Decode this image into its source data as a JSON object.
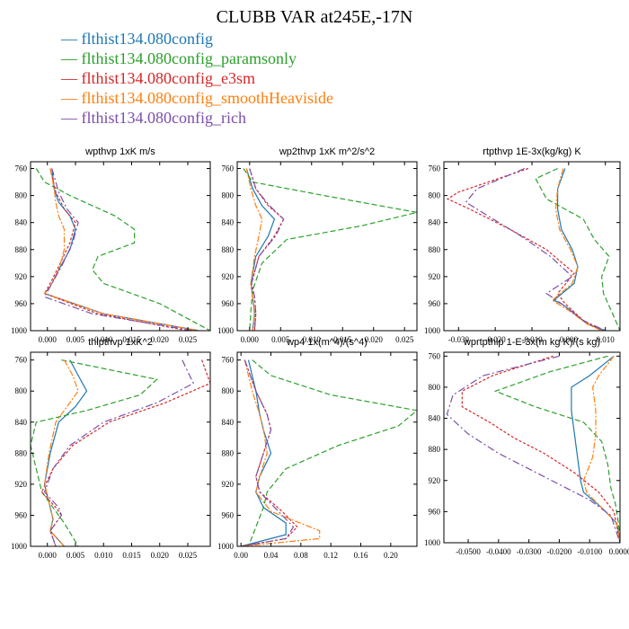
{
  "title": "CLUBB VAR at245E,-17N",
  "legend": [
    {
      "label": "flthist134.080config",
      "color": "#1f77b4"
    },
    {
      "label": "flthist134.080config_paramsonly",
      "color": "#2ca02c"
    },
    {
      "label": "flthist134.080config_e3sm",
      "color": "#d62728"
    },
    {
      "label": "flthist134.080config_smoothHeaviside",
      "color": "#ff7f0e"
    },
    {
      "label": "flthist134.080config_rich",
      "color": "#7b4fa8"
    }
  ],
  "chart_data": [
    {
      "type": "line",
      "title": "wpthvp   1xK m/s",
      "xlim": [
        -0.003,
        0.029
      ],
      "ylim": [
        1000,
        750
      ],
      "xticks": [
        0,
        0.005,
        0.01,
        0.015,
        0.02,
        0.025
      ],
      "xtick_labels": [
        "0.000",
        "0.005",
        "0.010",
        "0.015",
        "0.020",
        "0.025"
      ],
      "yticks": [
        760,
        800,
        840,
        880,
        920,
        960,
        1000
      ],
      "series": [
        {
          "name": "flthist134.080config",
          "x": [
            0.0008,
            0.0012,
            0.002,
            0.004,
            0.005,
            0.004,
            0.002,
            0.0005,
            -0.0005,
            0.01,
            0.027
          ],
          "y": [
            760,
            790,
            810,
            830,
            850,
            880,
            910,
            935,
            945,
            975,
            1000
          ]
        },
        {
          "name": "flthist134.080config_paramsonly",
          "x": [
            -0.002,
            -0.0005,
            0.004,
            0.012,
            0.0155,
            0.0155,
            0.009,
            0.008,
            0.01,
            0.02,
            0.029
          ],
          "y": [
            760,
            780,
            800,
            830,
            850,
            870,
            890,
            910,
            930,
            960,
            1000
          ]
        },
        {
          "name": "flthist134.080config_e3sm",
          "x": [
            0.0005,
            0.0015,
            0.003,
            0.005,
            0.004,
            0.002,
            0.0005,
            -0.0005,
            0.009,
            0.025
          ],
          "y": [
            760,
            795,
            820,
            840,
            870,
            905,
            930,
            945,
            975,
            1000
          ]
        },
        {
          "name": "flthist134.080config_smoothHeaviside",
          "x": [
            0.0005,
            0.0012,
            0.0015,
            0.002,
            0.003,
            0.003,
            0.002,
            0.0005,
            -0.0005,
            0.01,
            0.027
          ],
          "y": [
            760,
            790,
            810,
            830,
            850,
            880,
            910,
            935,
            945,
            975,
            1000
          ]
        },
        {
          "name": "flthist134.080config_rich",
          "x": [
            0.0008,
            0.002,
            0.0035,
            0.0055,
            0.0045,
            0.0025,
            0.0008,
            -0.0005,
            0.008,
            0.026
          ],
          "y": [
            760,
            795,
            820,
            840,
            870,
            905,
            930,
            950,
            975,
            1000
          ]
        }
      ]
    },
    {
      "type": "line",
      "title": "wp2thvp   1xK m^2/s^2",
      "xlim": [
        -0.002,
        0.027
      ],
      "ylim": [
        1000,
        750
      ],
      "xticks": [
        0,
        0.005,
        0.01,
        0.015,
        0.02,
        0.025
      ],
      "xtick_labels": [
        "0.000",
        "0.005",
        "0.010",
        "0.015",
        "0.020",
        "0.025"
      ],
      "yticks": [
        760,
        800,
        840,
        880,
        920,
        960,
        1000
      ],
      "series": [
        {
          "name": "flthist134.080config",
          "x": [
            -0.0005,
            0.0005,
            0.002,
            0.004,
            0.003,
            0.001,
            0.0002,
            0.0005,
            0.0008,
            0.0005
          ],
          "y": [
            760,
            790,
            815,
            835,
            860,
            890,
            930,
            950,
            975,
            1000
          ]
        },
        {
          "name": "flthist134.080config_paramsonly",
          "x": [
            -0.001,
            0.0005,
            0.012,
            0.027,
            0.018,
            0.006,
            0.002,
            0.0005,
            0.0002,
            0.0
          ],
          "y": [
            760,
            780,
            800,
            825,
            845,
            865,
            900,
            940,
            970,
            1000
          ]
        },
        {
          "name": "flthist134.080config_e3sm",
          "x": [
            0.0,
            0.001,
            0.003,
            0.0055,
            0.004,
            0.0015,
            0.0003,
            0.0008,
            0.001,
            0.0008
          ],
          "y": [
            760,
            790,
            815,
            835,
            860,
            890,
            930,
            950,
            975,
            1000
          ]
        },
        {
          "name": "flthist134.080config_smoothHeaviside",
          "x": [
            -0.0005,
            0.0002,
            0.001,
            0.002,
            0.0015,
            0.0008,
            0.0002,
            0.0005,
            0.0008,
            0.0005
          ],
          "y": [
            760,
            790,
            815,
            835,
            860,
            890,
            930,
            950,
            975,
            1000
          ]
        },
        {
          "name": "flthist134.080config_rich",
          "x": [
            0.0,
            0.001,
            0.0032,
            0.0055,
            0.0042,
            0.0015,
            0.0003,
            0.0008,
            0.001,
            0.0008
          ],
          "y": [
            760,
            790,
            815,
            835,
            860,
            890,
            930,
            950,
            975,
            1000
          ]
        }
      ]
    },
    {
      "type": "line",
      "title": "rtpthvp   1E-3x(kg/kg) K",
      "xlim": [
        -0.034,
        0.014
      ],
      "ylim": [
        1000,
        750
      ],
      "xticks": [
        -0.03,
        -0.02,
        -0.01,
        0,
        0.01
      ],
      "xtick_labels": [
        "-0.030",
        "-0.020",
        "-0.010",
        "0.000",
        "0.010"
      ],
      "yticks": [
        760,
        800,
        840,
        880,
        920,
        960,
        1000
      ],
      "series": [
        {
          "name": "flthist134.080config",
          "x": [
            -0.001,
            -0.003,
            -0.003,
            -0.002,
            0.001,
            0.0025,
            0.0015,
            -0.004,
            -0.002,
            0.0005,
            0.005,
            0.01
          ],
          "y": [
            760,
            790,
            820,
            850,
            880,
            905,
            930,
            955,
            960,
            970,
            990,
            1000
          ]
        },
        {
          "name": "flthist134.080config_paramsonly",
          "x": [
            -0.003,
            -0.009,
            -0.006,
            0.004,
            0.007,
            0.011,
            0.009,
            0.0095,
            0.012,
            0.014
          ],
          "y": [
            760,
            775,
            805,
            835,
            865,
            890,
            920,
            945,
            975,
            1000
          ]
        },
        {
          "name": "flthist134.080config_e3sm",
          "x": [
            -0.011,
            -0.03,
            -0.033,
            -0.027,
            -0.016,
            -0.006,
            0.0015,
            -0.003,
            -0.001,
            0.004,
            0.009
          ],
          "y": [
            760,
            795,
            805,
            820,
            850,
            880,
            915,
            945,
            960,
            985,
            1000
          ]
        },
        {
          "name": "flthist134.080config_smoothHeaviside",
          "x": [
            -0.0015,
            -0.003,
            -0.0035,
            -0.0025,
            0.0005,
            0.0025,
            0.001,
            -0.0045,
            -0.003,
            0.0,
            0.005,
            0.009
          ],
          "y": [
            760,
            790,
            820,
            850,
            880,
            905,
            930,
            955,
            960,
            970,
            990,
            1000
          ]
        },
        {
          "name": "flthist134.080config_rich",
          "x": [
            -0.012,
            -0.025,
            -0.028,
            -0.022,
            -0.013,
            -0.005,
            0.001,
            -0.006,
            -0.002,
            0.004,
            0.01
          ],
          "y": [
            760,
            790,
            810,
            830,
            860,
            890,
            920,
            945,
            960,
            985,
            1000
          ]
        }
      ]
    },
    {
      "type": "line",
      "title": "thlpthvp   1xK^2",
      "xlim": [
        -0.003,
        0.029
      ],
      "ylim": [
        1000,
        750
      ],
      "xticks": [
        0,
        0.005,
        0.01,
        0.015,
        0.02,
        0.025
      ],
      "xtick_labels": [
        "0.000",
        "0.005",
        "0.010",
        "0.015",
        "0.020",
        "0.025"
      ],
      "yticks": [
        760,
        800,
        840,
        880,
        920,
        960,
        1000
      ],
      "series": [
        {
          "name": "flthist134.080config",
          "x": [
            0.004,
            0.0055,
            0.007,
            0.005,
            0.002,
            0.0005,
            -0.0005,
            0.0005,
            0.001,
            0.0005,
            0.003
          ],
          "y": [
            760,
            780,
            800,
            820,
            840,
            880,
            920,
            950,
            965,
            980,
            1000
          ]
        },
        {
          "name": "flthist134.080config_paramsonly",
          "x": [
            0.0025,
            0.0195,
            0.0165,
            0.007,
            -0.002,
            -0.003,
            -0.002,
            -0.001,
            0.001,
            0.003,
            0.0055
          ],
          "y": [
            760,
            785,
            805,
            825,
            840,
            870,
            900,
            930,
            950,
            970,
            1000
          ]
        },
        {
          "name": "flthist134.080config_e3sm",
          "x": [
            0.0275,
            0.029,
            0.021,
            0.011,
            0.0045,
            0.001,
            -0.001,
            0.0015,
            0.0025,
            0.0005,
            0.0015
          ],
          "y": [
            760,
            790,
            815,
            840,
            870,
            900,
            930,
            950,
            960,
            980,
            1000
          ]
        },
        {
          "name": "flthist134.080config_smoothHeaviside",
          "x": [
            0.003,
            0.0045,
            0.0055,
            0.0035,
            0.0015,
            0.0003,
            -0.0005,
            0.0005,
            0.001,
            0.0005,
            0.003
          ],
          "y": [
            760,
            780,
            800,
            820,
            840,
            880,
            920,
            950,
            965,
            980,
            1000
          ]
        },
        {
          "name": "flthist134.080config_rich",
          "x": [
            0.024,
            0.026,
            0.0195,
            0.01,
            0.004,
            0.001,
            -0.0005,
            0.002,
            0.0025,
            0.0005,
            0.0015
          ],
          "y": [
            760,
            790,
            815,
            840,
            870,
            900,
            930,
            950,
            960,
            980,
            1000
          ]
        }
      ]
    },
    {
      "type": "line",
      "title": "wp4   1x(m^4)/(s^4)",
      "xlim": [
        -0.005,
        0.235
      ],
      "ylim": [
        1000,
        750
      ],
      "xticks": [
        0,
        0.04,
        0.08,
        0.12,
        0.16,
        0.2
      ],
      "xtick_labels": [
        "0.00",
        "0.04",
        "0.08",
        "0.12",
        "0.16",
        "0.20"
      ],
      "yticks": [
        760,
        800,
        840,
        880,
        920,
        960,
        1000
      ],
      "series": [
        {
          "name": "flthist134.080config",
          "x": [
            0.01,
            0.02,
            0.025,
            0.03,
            0.04,
            0.025,
            0.02,
            0.03,
            0.06,
            0.06,
            0.0
          ],
          "y": [
            760,
            800,
            830,
            850,
            880,
            910,
            930,
            950,
            970,
            985,
            1000
          ]
        },
        {
          "name": "flthist134.080config_paramsonly",
          "x": [
            0.015,
            0.04,
            0.12,
            0.235,
            0.21,
            0.13,
            0.06,
            0.035,
            0.03,
            0.02,
            0.01
          ],
          "y": [
            760,
            780,
            805,
            825,
            845,
            870,
            900,
            930,
            950,
            975,
            1000
          ]
        },
        {
          "name": "flthist134.080config_e3sm",
          "x": [
            0.005,
            0.02,
            0.035,
            0.04,
            0.03,
            0.02,
            0.025,
            0.055,
            0.075,
            0.06,
            0.0
          ],
          "y": [
            760,
            800,
            830,
            850,
            880,
            910,
            930,
            955,
            975,
            990,
            1000
          ]
        },
        {
          "name": "flthist134.080config_smoothHeaviside",
          "x": [
            0.005,
            0.015,
            0.025,
            0.03,
            0.035,
            0.025,
            0.02,
            0.04,
            0.105,
            0.105,
            0.0
          ],
          "y": [
            760,
            800,
            830,
            850,
            880,
            910,
            930,
            955,
            980,
            990,
            1000
          ]
        },
        {
          "name": "flthist134.080config_rich",
          "x": [
            0.005,
            0.02,
            0.035,
            0.04,
            0.03,
            0.02,
            0.025,
            0.05,
            0.07,
            0.06,
            0.0
          ],
          "y": [
            760,
            800,
            830,
            850,
            880,
            910,
            930,
            955,
            975,
            990,
            1000
          ]
        }
      ]
    },
    {
      "type": "line",
      "title": "wprtpthlp   1-E-3x(m kg K)/(s kg)",
      "xlim": [
        -0.058,
        0.0
      ],
      "ylim": [
        1000,
        755
      ],
      "xticks": [
        -0.05,
        -0.04,
        -0.03,
        -0.02,
        -0.01,
        0
      ],
      "xtick_labels": [
        "-0.0500",
        "-0.0400",
        "-0.0300",
        "-0.0200",
        "-0.0100",
        "0.0000"
      ],
      "yticks": [
        760,
        800,
        840,
        880,
        920,
        960,
        1000
      ],
      "series": [
        {
          "name": "flthist134.080config",
          "x": [
            -0.002,
            -0.01,
            -0.016,
            -0.016,
            -0.015,
            -0.014,
            -0.013,
            -0.012,
            -0.006,
            -0.001,
            0.0
          ],
          "y": [
            760,
            785,
            800,
            830,
            860,
            890,
            920,
            935,
            955,
            975,
            1000
          ]
        },
        {
          "name": "flthist134.080config_paramsonly",
          "x": [
            -0.004,
            -0.023,
            -0.041,
            -0.028,
            -0.012,
            -0.006,
            -0.004,
            -0.003,
            -0.0015,
            -0.0005,
            0.0
          ],
          "y": [
            760,
            780,
            805,
            825,
            845,
            870,
            900,
            930,
            950,
            975,
            1000
          ]
        },
        {
          "name": "flthist134.080config_e3sm",
          "x": [
            -0.022,
            -0.042,
            -0.052,
            -0.052,
            -0.043,
            -0.035,
            -0.025,
            -0.015,
            -0.007,
            -0.002,
            0.0
          ],
          "y": [
            760,
            785,
            805,
            825,
            845,
            865,
            885,
            910,
            935,
            960,
            1000
          ]
        },
        {
          "name": "flthist134.080config_smoothHeaviside",
          "x": [
            -0.002,
            -0.007,
            -0.009,
            -0.008,
            -0.008,
            -0.009,
            -0.012,
            -0.011,
            -0.006,
            -0.001,
            0.0
          ],
          "y": [
            760,
            785,
            800,
            830,
            860,
            890,
            920,
            935,
            955,
            975,
            1000
          ]
        },
        {
          "name": "flthist134.080config_rich",
          "x": [
            -0.02,
            -0.045,
            -0.055,
            -0.057,
            -0.05,
            -0.04,
            -0.03,
            -0.02,
            -0.01,
            -0.003,
            0.0
          ],
          "y": [
            760,
            785,
            810,
            835,
            860,
            885,
            905,
            925,
            945,
            965,
            1000
          ]
        }
      ]
    }
  ]
}
